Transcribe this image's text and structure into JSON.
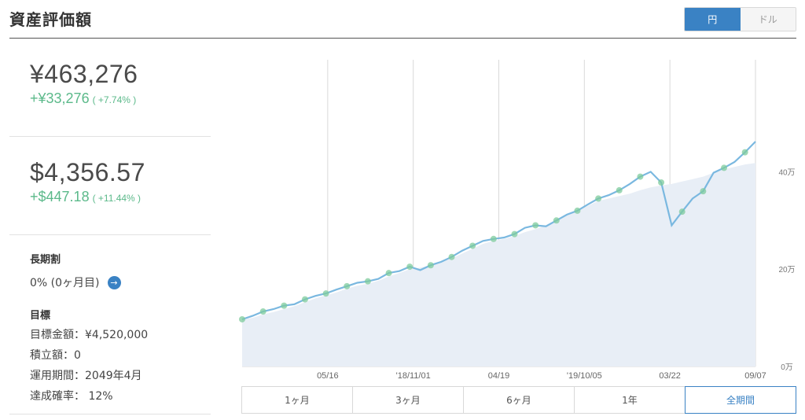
{
  "header": {
    "title": "資産評価額",
    "currency_toggle": [
      {
        "label": "円",
        "active": true
      },
      {
        "label": "ドル",
        "active": false
      }
    ]
  },
  "summary": {
    "yen": {
      "value": "¥463,276",
      "gain": "+¥33,276",
      "gain_pct": "( +7.74% )"
    },
    "usd": {
      "value": "$4,356.57",
      "gain": "+$447.18",
      "gain_pct": "( +11.44% )"
    }
  },
  "long_term": {
    "label": "長期割",
    "value": "0% (0ヶ月目)"
  },
  "goal": {
    "title": "目標",
    "amount": "目標金額：¥4,520,000",
    "monthly": "積立額：0",
    "period": "運用期間：2049年4月",
    "probability": "達成確率： 12%"
  },
  "colors": {
    "accent": "#3a82c4",
    "gain": "#5bb98a",
    "line": "#7ab8e0",
    "area": "#e8eef6"
  },
  "range_tabs": [
    {
      "label": "1ヶ月",
      "active": false
    },
    {
      "label": "3ヶ月",
      "active": false
    },
    {
      "label": "6ヶ月",
      "active": false
    },
    {
      "label": "1年",
      "active": false
    },
    {
      "label": "全期間",
      "active": true
    }
  ],
  "chart_data": {
    "type": "area",
    "x_ticks": [
      "05/16",
      "'18/11/01",
      "04/19",
      "'19/10/05",
      "03/22",
      "09/07"
    ],
    "y_ticks": [
      "0万",
      "20万",
      "40万"
    ],
    "ylim": [
      0,
      630000
    ],
    "grid": true,
    "series": [
      {
        "values": [
          97000,
          104000,
          113000,
          118000,
          125000,
          128000,
          138000,
          145000,
          150000,
          158000,
          165000,
          172000,
          175000,
          180000,
          192000,
          196000,
          205000,
          198000,
          208000,
          215000,
          225000,
          238000,
          248000,
          258000,
          262000,
          265000,
          272000,
          285000,
          290000,
          288000,
          300000,
          312000,
          320000,
          333000,
          345000,
          352000,
          362000,
          375000,
          390000,
          400000,
          378000,
          290000,
          318000,
          345000,
          360000,
          398000,
          408000,
          420000,
          440000,
          462000
        ]
      },
      {
        "values": [
          97000,
          100000,
          107000,
          112000,
          118000,
          124000,
          132000,
          140000,
          146000,
          152000,
          160000,
          166000,
          170000,
          176000,
          185000,
          192000,
          200000,
          203000,
          208000,
          215000,
          222000,
          232000,
          242000,
          252000,
          258000,
          262000,
          268000,
          276000,
          282000,
          290000,
          300000,
          310000,
          320000,
          330000,
          340000,
          345000,
          350000,
          355000,
          362000,
          368000,
          372000,
          375000,
          380000,
          385000,
          390000,
          398000,
          405000,
          410000,
          415000,
          418000
        ]
      }
    ]
  }
}
